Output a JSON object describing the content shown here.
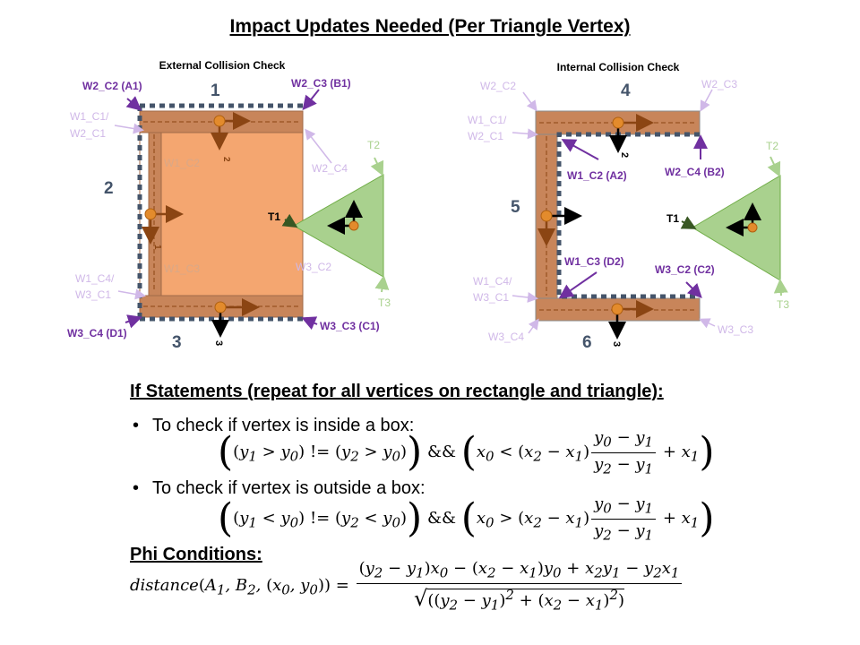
{
  "title": "Impact Updates Needed (Per Triangle Vertex)",
  "external": {
    "heading": "External Collision Check",
    "labels": {
      "w2c2a1": "W2_C2 (A1)",
      "w2c3b1": "W2_C3 (B1)",
      "w1c1a": "W1_C1/",
      "w1c1b": "W2_C1",
      "w1c2": "W1_C2",
      "w2c4": "W2_C4",
      "w1c3": "W1_C3",
      "w3c2": "W3_C2",
      "w1c4a": "W1_C4/",
      "w1c4b": "W3_C1",
      "w3c4d1": "W3_C4 (D1)",
      "w3c3c1": "W3_C3 (C1)",
      "wall_top": "1",
      "wall_left": "2",
      "wall_bottom": "3",
      "axis1": "1",
      "axis2": "2",
      "axis3": "3",
      "t1": "T1",
      "t2": "T2",
      "t3": "T3"
    }
  },
  "internal": {
    "heading": "Internal Collision Check",
    "labels": {
      "w2c2": "W2_C2",
      "w2c3": "W2_C3",
      "w1c1a": "W1_C1/",
      "w1c1b": "W2_C1",
      "w1c2a2": "W1_C2 (A2)",
      "w2c4b2": "W2_C4 (B2)",
      "w1c3d2": "W1_C3 (D2)",
      "w3c2c2": "W3_C2 (C2)",
      "w1c4a": "W1_C4/",
      "w1c4b": "W3_C1",
      "w3c4": "W3_C4",
      "w3c3": "W3_C3",
      "wall_top": "4",
      "wall_left": "5",
      "wall_bottom": "6",
      "axis2": "2",
      "axis3": "3",
      "t1": "T1",
      "t2": "T2",
      "t3": "T3"
    }
  },
  "if_section": {
    "heading": "If Statements (repeat for all vertices on rectangle and triangle):",
    "bullet_inside": "To check if vertex is inside a box:",
    "bullet_outside": "To check if vertex is outside a box:"
  },
  "phi": {
    "heading": "Phi Conditions:"
  },
  "colors": {
    "wall": "#c8855a",
    "fill": "#f4a670",
    "triangle": "#a9d18e",
    "purple": "#7030a0",
    "label_faded": "#d0b8e8",
    "dashed": "#44546a"
  }
}
